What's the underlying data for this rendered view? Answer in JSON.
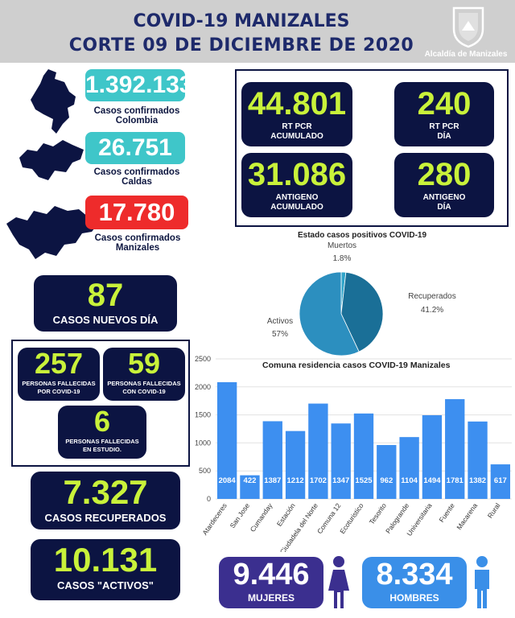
{
  "header": {
    "title": "COVID-19 MANIZALES",
    "subtitle": "CORTE  09 DE DICIEMBRE DE 2020",
    "logo_text": "Alcaldía de Manizales"
  },
  "confirmed": [
    {
      "value": "1.392.133",
      "label_line1": "Casos confirmados",
      "label_line2": "Colombia",
      "color": "#3fc6c9"
    },
    {
      "value": "26.751",
      "label_line1": "Casos confirmados",
      "label_line2": "Caldas",
      "color": "#3fc6c9"
    },
    {
      "value": "17.780",
      "label_line1": "Casos confirmados",
      "label_line2": "Manizales",
      "color": "#ee2b2b"
    }
  ],
  "tests": [
    {
      "value": "44.801",
      "label_line1": "RT PCR",
      "label_line2": "ACUMULADO"
    },
    {
      "value": "240",
      "label_line1": "RT PCR",
      "label_line2": "DÍA"
    },
    {
      "value": "31.086",
      "label_line1": "ANTIGENO",
      "label_line2": "ACUMULADO"
    },
    {
      "value": "280",
      "label_line1": "ANTIGENO",
      "label_line2": "DÍA"
    }
  ],
  "new_cases": {
    "value": "87",
    "label": "CASOS NUEVOS DÍA"
  },
  "deaths": [
    {
      "value": "257",
      "label_line1": "PERSONAS FALLECIDAS",
      "label_line2": "POR COVID-19"
    },
    {
      "value": "59",
      "label_line1": "PERSONAS FALLECIDAS",
      "label_line2": "CON COVID-19"
    },
    {
      "value": "6",
      "label_line1": "PERSONAS FALLECIDAS",
      "label_line2": "EN ESTUDIO."
    }
  ],
  "recovered": {
    "value": "7.327",
    "label": "CASOS RECUPERADOS"
  },
  "active": {
    "value": "10.131",
    "label": "CASOS \"ACTIVOS\""
  },
  "gender": {
    "women": {
      "value": "9.446",
      "label": "MUJERES",
      "color": "#3b2f8f"
    },
    "men": {
      "value": "8.334",
      "label": "HOMBRES",
      "color": "#3a8fe8"
    }
  },
  "chart_data": [
    {
      "type": "pie",
      "title": "Estado casos positivos COVID-19",
      "slices": [
        {
          "name": "Muertos",
          "value": 1.8,
          "label": "1.8%",
          "color": "#2ea3c9"
        },
        {
          "name": "Recuperados",
          "value": 41.2,
          "label": "41.2%",
          "color": "#1a6f97"
        },
        {
          "name": "Activos",
          "value": 57,
          "label": "57%",
          "color": "#2c8fbf"
        }
      ]
    },
    {
      "type": "bar",
      "title": "Comuna residencia casos COVID-19 Manizales",
      "categories": [
        "Atardeceres",
        "San Jose",
        "Cumanday",
        "Estación",
        "Ciudadela del Norte",
        "Comuna 12",
        "Ecoturistico",
        "Tesorito",
        "Palogrande",
        "Universitaria",
        "Fuente",
        "Macarena",
        "Rural"
      ],
      "values": [
        2084,
        422,
        1387,
        1212,
        1702,
        1347,
        1525,
        962,
        1104,
        1494,
        1781,
        1382,
        617
      ],
      "yticks": [
        "0",
        "500",
        "1000",
        "1500",
        "2000",
        "2500"
      ],
      "ylim": [
        0,
        2500
      ],
      "bar_color": "#3d8ff0",
      "grid": true
    }
  ]
}
